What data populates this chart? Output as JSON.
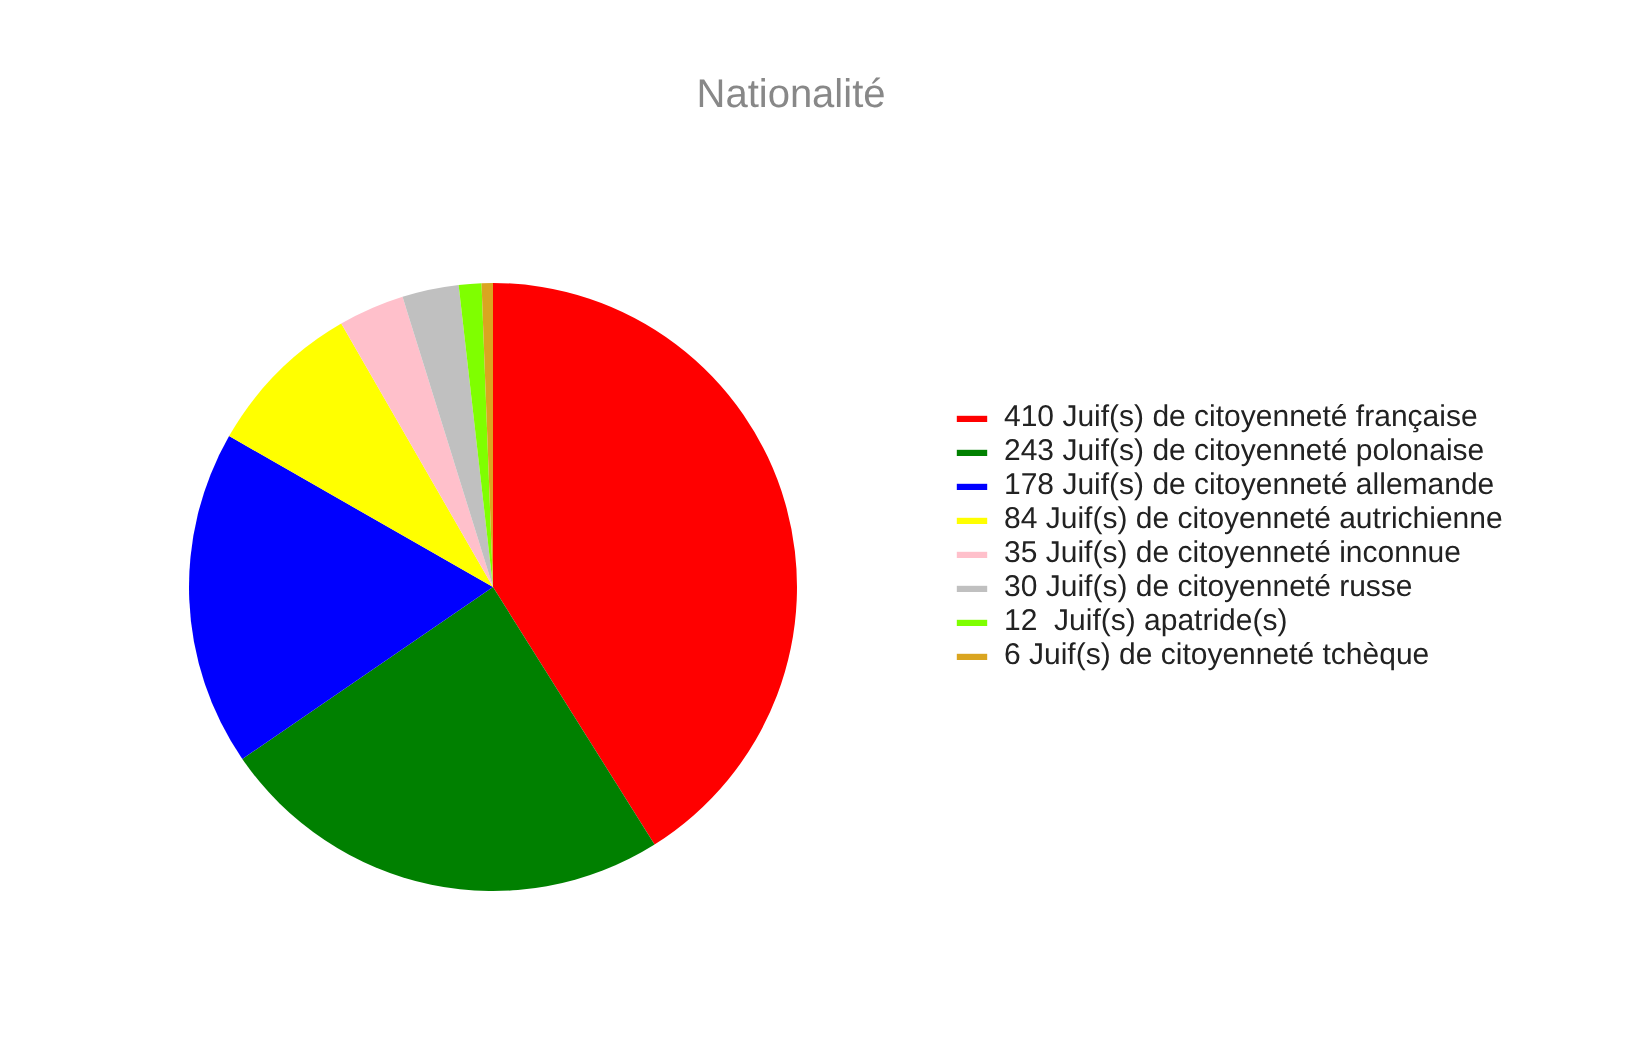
{
  "chart_data": {
    "type": "pie",
    "title": "Nationalité",
    "categories": [
      "410 Juif(s) de citoyenneté française",
      "243 Juif(s) de citoyenneté polonaise",
      "178 Juif(s) de citoyenneté allemande",
      "84 Juif(s) de citoyenneté autrichienne",
      "35 Juif(s) de citoyenneté inconnue",
      "30 Juif(s) de citoyenneté russe",
      "12  Juif(s) apatride(s)",
      "6 Juif(s) de citoyenneté tchèque"
    ],
    "values": [
      410,
      243,
      178,
      84,
      35,
      30,
      12,
      6
    ],
    "colors": [
      "#ff0000",
      "#008000",
      "#0000ff",
      "#ffff00",
      "#ffc0cb",
      "#c0c0c0",
      "#7fff00",
      "#daa520"
    ],
    "legend": "right"
  }
}
